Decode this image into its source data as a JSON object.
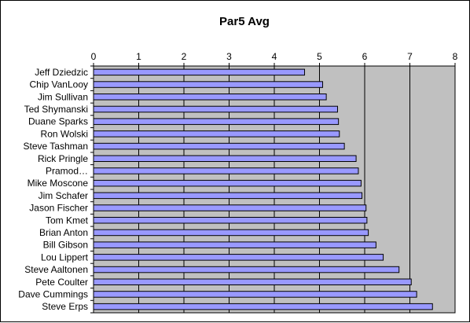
{
  "chart_data": {
    "type": "bar",
    "orientation": "horizontal",
    "title": "Par5 Avg",
    "xlabel": "",
    "ylabel": "",
    "xlim": [
      0,
      8
    ],
    "xticks": [
      0,
      1,
      2,
      3,
      4,
      5,
      6,
      7,
      8
    ],
    "axis_position": "top",
    "grid": true,
    "legend": "none",
    "categories": [
      "Jeff Dziedzic",
      "Chip VanLooy",
      "Jim Sullivan",
      "Ted Shymanski",
      "Duane Sparks",
      "Ron Wolski",
      "Steve Tashman",
      "Rick Pringle",
      "Pramod…",
      "Mike Moscone",
      "Jim Schafer",
      "Jason Fischer",
      "Tom Kmet",
      "Brian Anton",
      "Bill Gibson",
      "Lou Lippert",
      "Steve Aaltonen",
      "Pete Coulter",
      "Dave Cummings",
      "Steve Erps"
    ],
    "values": [
      4.67,
      5.07,
      5.15,
      5.4,
      5.42,
      5.44,
      5.55,
      5.81,
      5.86,
      5.92,
      5.94,
      6.03,
      6.05,
      6.08,
      6.25,
      6.41,
      6.76,
      7.03,
      7.15,
      7.5
    ],
    "colors": {
      "plot_background": "#c0c0c0",
      "bar_fill": "#9999ff",
      "bar_stroke": "#000000",
      "gridline": "#000000"
    }
  }
}
